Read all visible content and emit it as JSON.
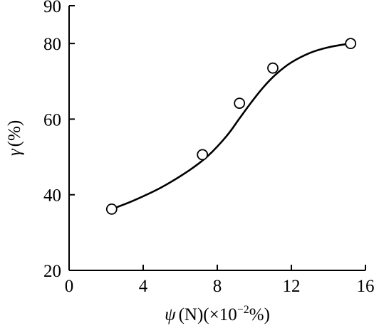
{
  "chart_data": {
    "type": "scatter",
    "title": "",
    "xlabel": {
      "base": "ψ",
      "middle": "(N)(×10",
      "exponent": "−2",
      "end": "%)"
    },
    "ylabel": {
      "base": "γ",
      "rest": "(%)"
    },
    "xlim": [
      0,
      16
    ],
    "ylim": [
      20,
      90
    ],
    "xticks": [
      0,
      4,
      8,
      12,
      16
    ],
    "yticks": [
      20,
      40,
      60,
      80,
      90
    ],
    "grid": false,
    "legend": "none",
    "marker": "open-circle",
    "series": [
      {
        "points": [
          {
            "x": 2.3,
            "y": 36.2
          },
          {
            "x": 7.2,
            "y": 50.6
          },
          {
            "x": 9.2,
            "y": 64.2
          },
          {
            "x": 11.0,
            "y": 73.5
          },
          {
            "x": 15.2,
            "y": 80.0
          }
        ]
      }
    ],
    "fit_curve": {
      "x": [
        2.3,
        3.5,
        5.0,
        6.5,
        7.5,
        8.5,
        9.2,
        9.8,
        10.5,
        11.2,
        12.0,
        13.0,
        14.0,
        15.2
      ],
      "y": [
        36.2,
        38.5,
        42.0,
        46.5,
        50.3,
        55.5,
        60.2,
        64.2,
        68.5,
        72.0,
        75.0,
        77.5,
        79.0,
        80.0
      ]
    }
  }
}
